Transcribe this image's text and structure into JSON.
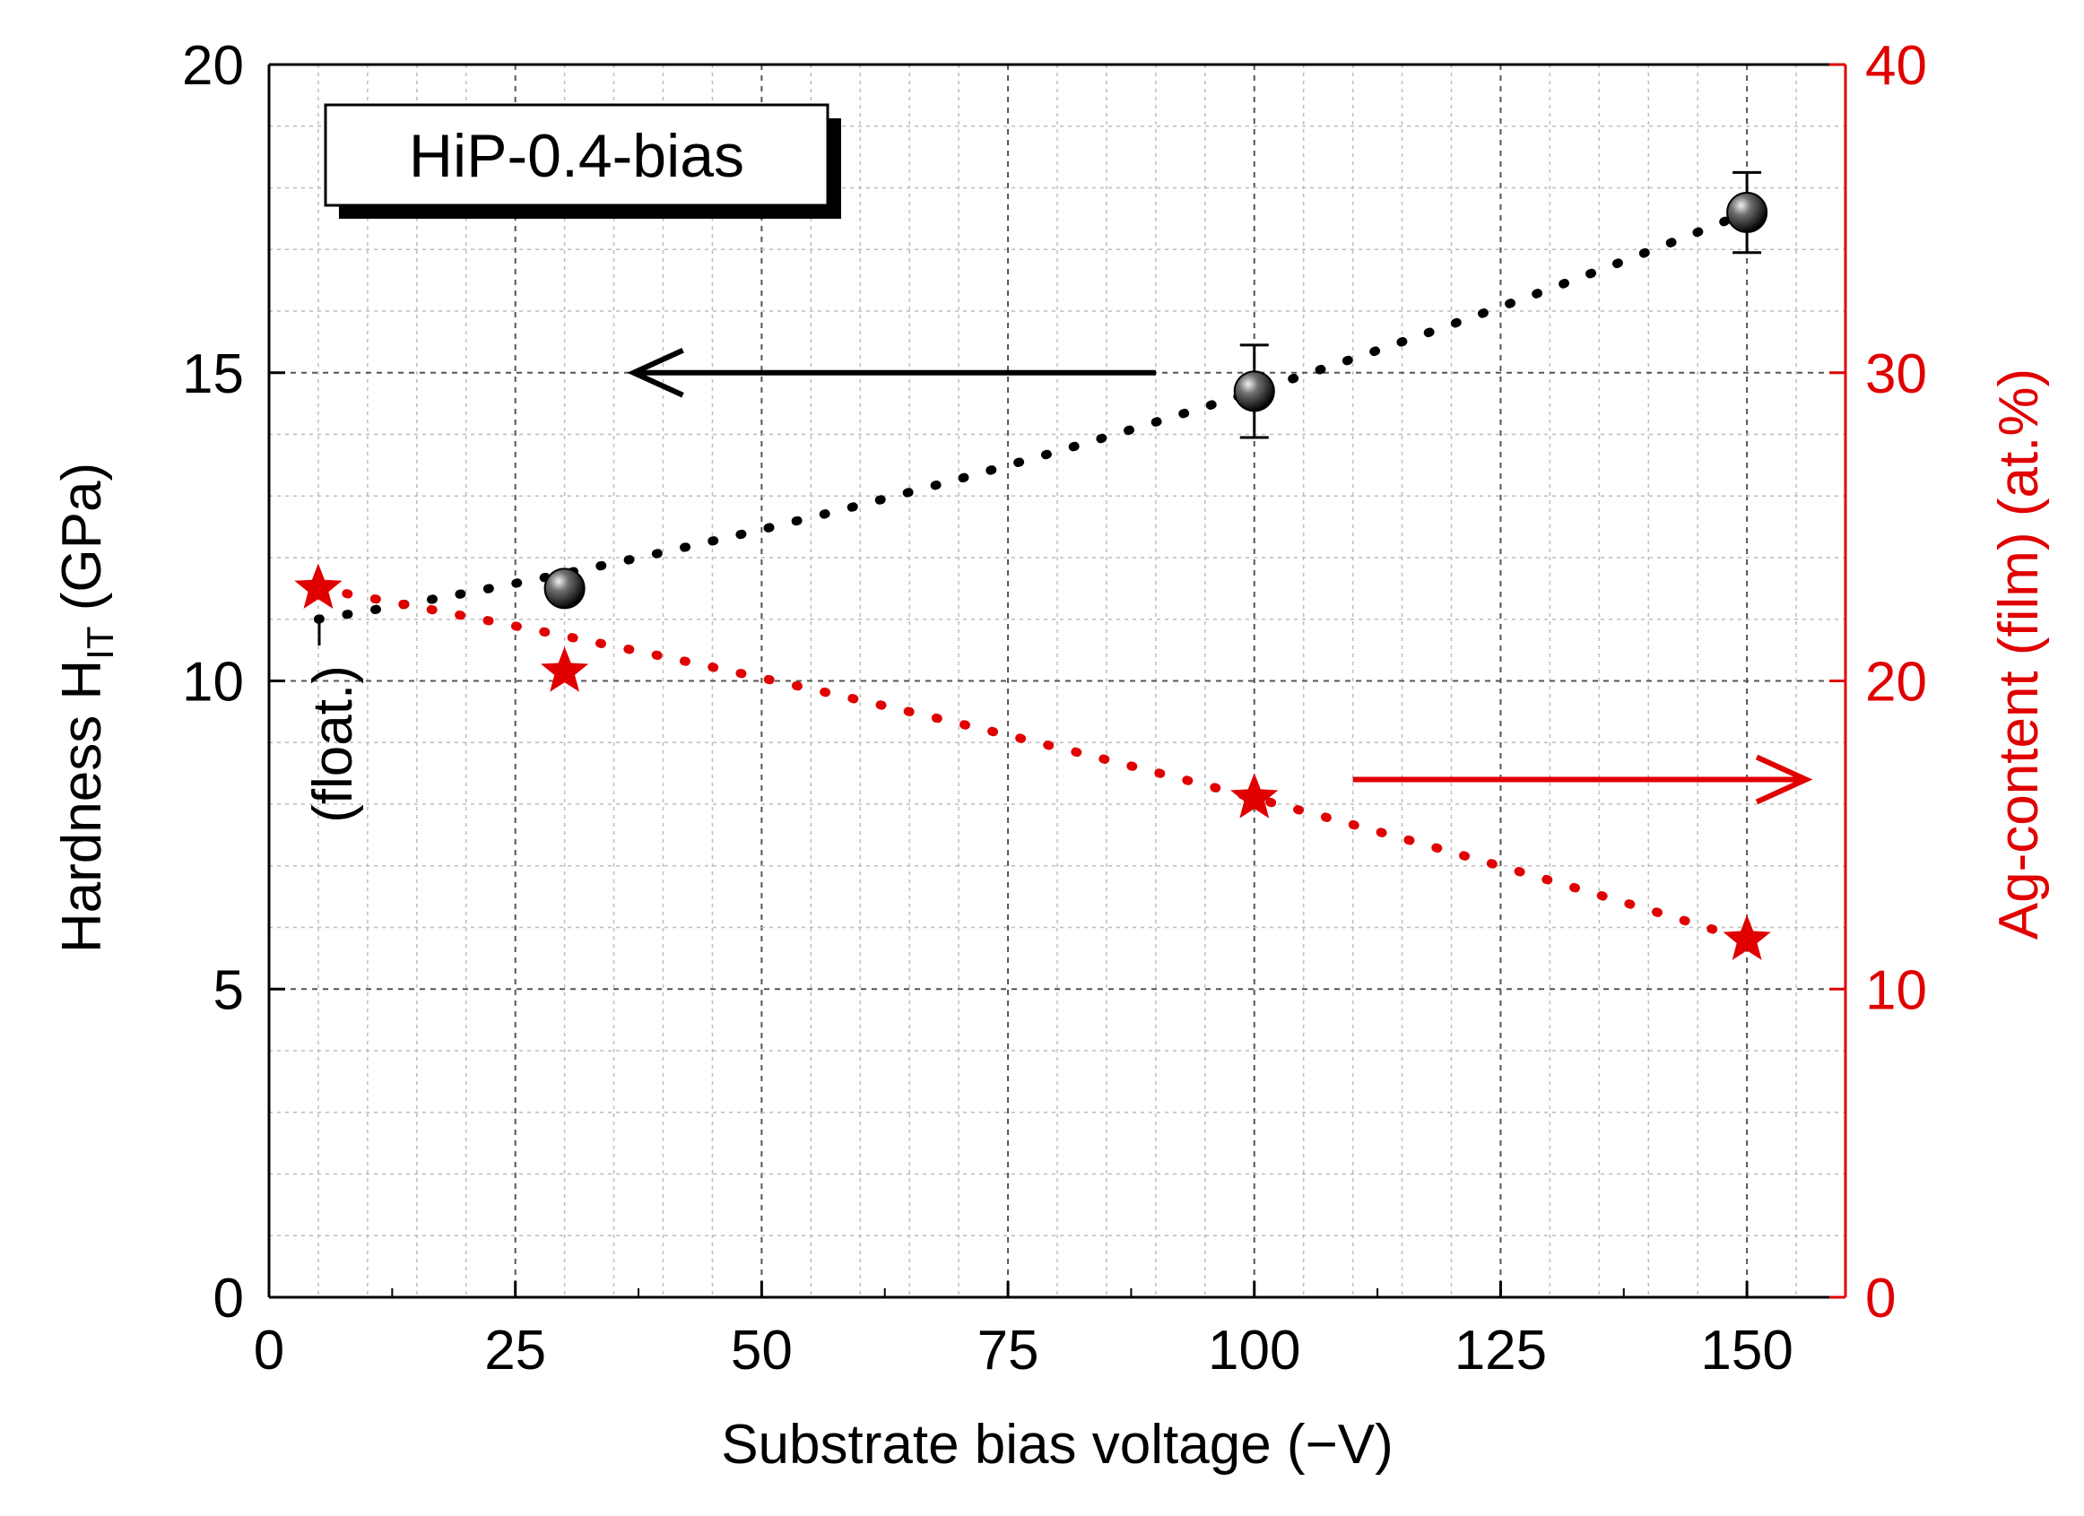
{
  "chart_data": {
    "type": "scatter",
    "legend_box_text": "HiP-0.4-bias",
    "xlabel": "Substrate bias voltage (−V)",
    "ylabel_left_main": "Hardness H",
    "ylabel_left_sub": "IT",
    "ylabel_left_unit": " (GPa)",
    "ylabel_right": "Ag-content (film) (at.%)",
    "xlim": [
      0,
      160
    ],
    "ylim_left": [
      0,
      20
    ],
    "ylim_right": [
      0,
      40
    ],
    "x_ticks": [
      0,
      25,
      50,
      75,
      100,
      125,
      150
    ],
    "y_left_ticks": [
      0,
      5,
      10,
      15,
      20
    ],
    "y_right_ticks": [
      0,
      10,
      20,
      30,
      40
    ],
    "grid": true,
    "float_annotation": "(float.)",
    "colors": {
      "hardness": "#000000",
      "ag": "#e00000",
      "axis_left": "#000000",
      "axis_right": "#e00000"
    },
    "series": [
      {
        "name": "Hardness H_IT (GPa)",
        "axis": "left",
        "marker": "sphere",
        "x": [
          30,
          100,
          150
        ],
        "y": [
          11.5,
          14.7,
          17.6
        ],
        "yerr": [
          0.1,
          0.75,
          0.65
        ],
        "trend": {
          "x": [
            5,
            150
          ],
          "y": [
            11.0,
            17.6
          ]
        }
      },
      {
        "name": "Ag-content (film) (at.%)",
        "axis": "right",
        "marker": "star",
        "x": [
          5,
          30,
          100,
          150
        ],
        "y": [
          23.0,
          20.3,
          16.2,
          11.6
        ],
        "trend": {
          "x": [
            5,
            150
          ],
          "y": [
            23.0,
            11.6
          ]
        }
      }
    ],
    "arrows": [
      {
        "series": "Hardness",
        "axis": "left",
        "direction": "left",
        "x_from": 90,
        "x_to": 37,
        "y": 15.0
      },
      {
        "series": "Ag",
        "axis": "right",
        "direction": "right",
        "x_from": 110,
        "x_to": 156,
        "y": 16.8
      }
    ]
  }
}
